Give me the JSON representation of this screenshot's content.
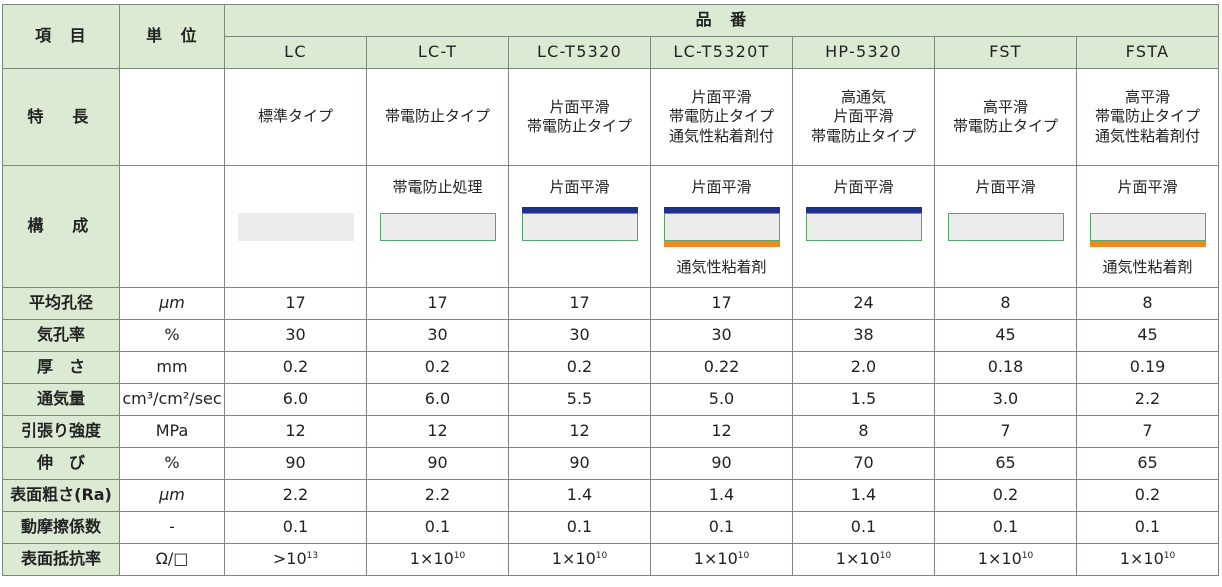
{
  "header": {
    "item_label": "項　目",
    "unit_label": "単　位",
    "product_label": "品　番",
    "products": [
      "LC",
      "LC-T",
      "LC-T5320",
      "LC-T5320T",
      "HP-5320",
      "FST",
      "FSTA"
    ]
  },
  "features": {
    "label": "特　長",
    "values": [
      [
        "標準タイプ"
      ],
      [
        "帯電防止タイプ"
      ],
      [
        "片面平滑",
        "帯電防止タイプ"
      ],
      [
        "片面平滑",
        "帯電防止タイプ",
        "通気性粘着剤付"
      ],
      [
        "高通気",
        "片面平滑",
        "帯電防止タイプ"
      ],
      [
        "高平滑",
        "帯電防止タイプ"
      ],
      [
        "高平滑",
        "帯電防止タイプ",
        "通気性粘着剤付"
      ]
    ]
  },
  "composition": {
    "label": "構　成",
    "items": [
      {
        "top": "",
        "bottom": "",
        "blue": false,
        "orange": false,
        "border": false
      },
      {
        "top": "帯電防止処理",
        "bottom": "",
        "blue": false,
        "orange": false,
        "border": true
      },
      {
        "top": "片面平滑",
        "bottom": "",
        "blue": true,
        "orange": false,
        "border": true
      },
      {
        "top": "片面平滑",
        "bottom": "通気性粘着剤",
        "blue": true,
        "orange": true,
        "border": true
      },
      {
        "top": "片面平滑",
        "bottom": "",
        "blue": true,
        "orange": false,
        "border": true
      },
      {
        "top": "片面平滑",
        "bottom": "",
        "blue": false,
        "orange": false,
        "border": true
      },
      {
        "top": "片面平滑",
        "bottom": "通気性粘着剤",
        "blue": false,
        "orange": true,
        "border": true
      }
    ],
    "colors": {
      "blue": "#1f2f8a",
      "orange": "#f08a1e",
      "film": "#ececec",
      "border": "#5aa56a"
    }
  },
  "rows": [
    {
      "label": "平均孔径",
      "unit": "μm",
      "values": [
        "17",
        "17",
        "17",
        "17",
        "24",
        "8",
        "8"
      ]
    },
    {
      "label": "気孔率",
      "unit": "%",
      "values": [
        "30",
        "30",
        "30",
        "30",
        "38",
        "45",
        "45"
      ]
    },
    {
      "label": "厚　さ",
      "unit": "mm",
      "values": [
        "0.2",
        "0.2",
        "0.2",
        "0.22",
        "2.0",
        "0.18",
        "0.19"
      ]
    },
    {
      "label": "通気量",
      "unit": "cm³/cm²/sec",
      "values": [
        "6.0",
        "6.0",
        "5.5",
        "5.0",
        "1.5",
        "3.0",
        "2.2"
      ]
    },
    {
      "label": "引張り強度",
      "unit": "MPa",
      "values": [
        "12",
        "12",
        "12",
        "12",
        "8",
        "7",
        "7"
      ]
    },
    {
      "label": "伸　び",
      "unit": "%",
      "values": [
        "90",
        "90",
        "90",
        "90",
        "70",
        "65",
        "65"
      ]
    },
    {
      "label": "表面粗さ(Ra)",
      "unit": "μm",
      "values": [
        "2.2",
        "2.2",
        "1.4",
        "1.4",
        "1.4",
        "0.2",
        "0.2"
      ]
    },
    {
      "label": "動摩擦係数",
      "unit": "-",
      "values": [
        "0.1",
        "0.1",
        "0.1",
        "0.1",
        "0.1",
        "0.1",
        "0.1"
      ]
    }
  ],
  "resistivity": {
    "label": "表面抵抗率",
    "unit": "Ω/□",
    "values": [
      {
        "base": ">10",
        "exp": "13"
      },
      {
        "base": "1×10",
        "exp": "10"
      },
      {
        "base": "1×10",
        "exp": "10"
      },
      {
        "base": "1×10",
        "exp": "10"
      },
      {
        "base": "1×10",
        "exp": "10"
      },
      {
        "base": "1×10",
        "exp": "10"
      },
      {
        "base": "1×10",
        "exp": "10"
      }
    ]
  }
}
